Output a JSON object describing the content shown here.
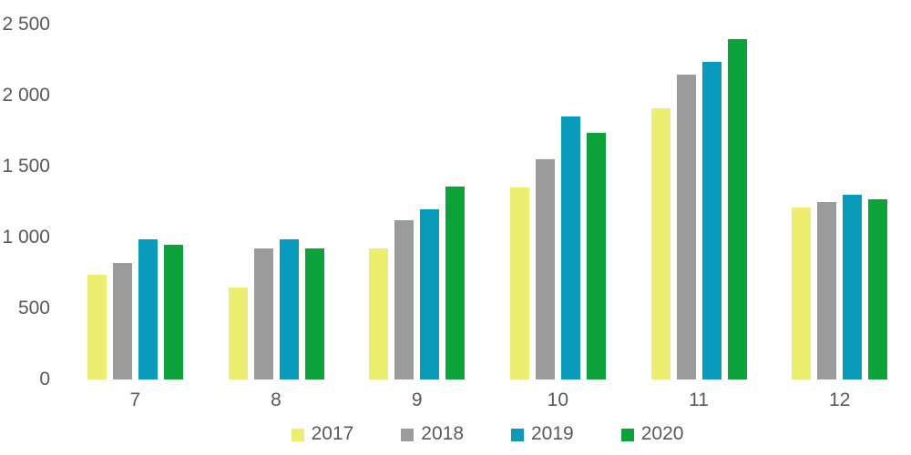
{
  "text_color": "#58595b",
  "chart_data": {
    "type": "bar",
    "title": "",
    "xlabel": "",
    "ylabel": "",
    "categories": [
      "7",
      "8",
      "9",
      "10",
      "11",
      "12"
    ],
    "series": [
      {
        "name": "2017",
        "color": "#ebee6e",
        "values": [
          740,
          650,
          920,
          1350,
          1910,
          1210
        ]
      },
      {
        "name": "2018",
        "color": "#9b9b9b",
        "values": [
          820,
          925,
          1125,
          1550,
          2150,
          1250
        ]
      },
      {
        "name": "2019",
        "color": "#099bbc",
        "values": [
          985,
          985,
          1200,
          1850,
          2240,
          1300
        ]
      },
      {
        "name": "2020",
        "color": "#0ca33a",
        "values": [
          950,
          925,
          1360,
          1740,
          2400,
          1270
        ]
      }
    ],
    "ylim": [
      0,
      2500
    ],
    "yticks": [
      0,
      500,
      1000,
      1500,
      2000,
      2500
    ],
    "ytick_labels": [
      "0",
      "500",
      "1 000",
      "1 500",
      "2 000",
      "2 500"
    ],
    "grid": false,
    "axis_lines": false,
    "legend_position": "bottom"
  }
}
